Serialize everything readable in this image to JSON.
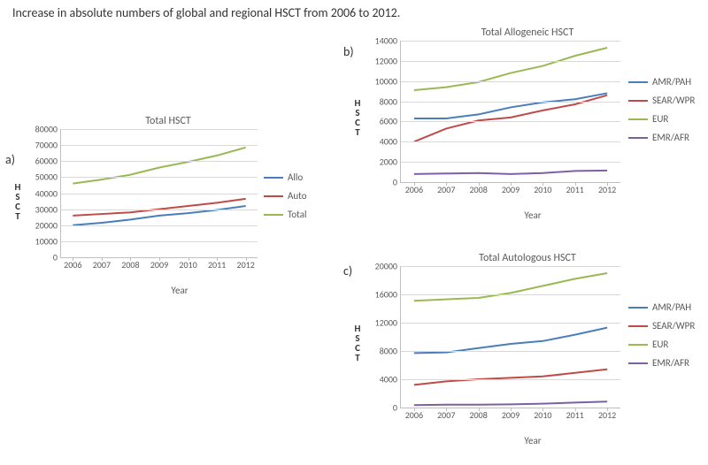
{
  "page_title": "Increase in absolute numbers of global and regional HSCT from 2006 to 2012.",
  "panel_labels": {
    "a": "a)",
    "b": "b)",
    "c": "c)"
  },
  "axis_titles": {
    "y": "HSCT",
    "x": "Year"
  },
  "common": {
    "categories": [
      "2006",
      "2007",
      "2008",
      "2009",
      "2010",
      "2011",
      "2012"
    ],
    "line_width": 2,
    "grid_color": "#d9d9d9",
    "axis_color": "#bfbfbf",
    "label_fontsize": 10,
    "title_fontsize": 12
  },
  "palette": {
    "blue": "#4a7ebb",
    "red": "#be4b48",
    "green": "#98b954",
    "purple": "#7d60a0"
  },
  "chart_a": {
    "title": "Total HSCT",
    "ylim": [
      0,
      80000
    ],
    "ytick_step": 10000,
    "series": [
      {
        "name": "Allo",
        "color": "#4a7ebb",
        "values": [
          20000,
          21500,
          23500,
          26000,
          27500,
          29500,
          32000
        ]
      },
      {
        "name": "Auto",
        "color": "#be4b48",
        "values": [
          26000,
          27000,
          28000,
          30000,
          32000,
          34000,
          36500
        ]
      },
      {
        "name": "Total",
        "color": "#98b954",
        "values": [
          46000,
          48500,
          51500,
          56000,
          59500,
          63500,
          68500
        ]
      }
    ]
  },
  "chart_b": {
    "title": "Total Allogeneic HSCT",
    "ylim": [
      0,
      14000
    ],
    "ytick_step": 2000,
    "series": [
      {
        "name": "AMR/PAH",
        "color": "#4a7ebb",
        "values": [
          6300,
          6300,
          6700,
          7400,
          7900,
          8200,
          8800
        ]
      },
      {
        "name": "SEAR/WPR",
        "color": "#be4b48",
        "values": [
          4000,
          5300,
          6100,
          6400,
          7100,
          7700,
          8600
        ]
      },
      {
        "name": "EUR",
        "color": "#98b954",
        "values": [
          9100,
          9400,
          9900,
          10800,
          11500,
          12500,
          13300
        ]
      },
      {
        "name": "EMR/AFR",
        "color": "#7d60a0",
        "values": [
          800,
          850,
          900,
          800,
          900,
          1100,
          1150
        ]
      }
    ]
  },
  "chart_c": {
    "title": "Total Autologous HSCT",
    "ylim": [
      0,
      20000
    ],
    "ytick_step": 4000,
    "series": [
      {
        "name": "AMR/PAH",
        "color": "#4a7ebb",
        "values": [
          7700,
          7800,
          8400,
          9000,
          9400,
          10300,
          11300
        ]
      },
      {
        "name": "SEAR/WPR",
        "color": "#be4b48",
        "values": [
          3200,
          3700,
          4000,
          4200,
          4400,
          4900,
          5400
        ]
      },
      {
        "name": "EUR",
        "color": "#98b954",
        "values": [
          15100,
          15300,
          15500,
          16200,
          17200,
          18200,
          19000
        ]
      },
      {
        "name": "EMR/AFR",
        "color": "#7d60a0",
        "values": [
          350,
          400,
          400,
          450,
          550,
          700,
          850
        ]
      }
    ]
  }
}
